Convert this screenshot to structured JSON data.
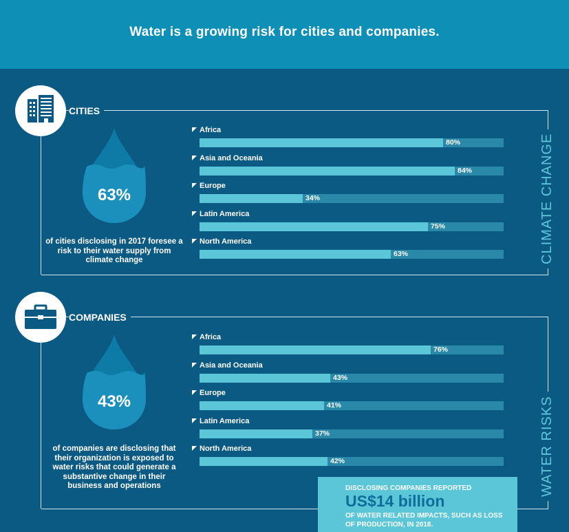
{
  "header": {
    "title": "Water is a growing risk for cities and companies."
  },
  "cities": {
    "label": "CITIES",
    "side_label": "CLIMATE CHANGE",
    "pct": "63%",
    "description": "of cities disclosing in 2017 foresee a risk to their water supply from climate change",
    "icon": "building-icon"
  },
  "companies": {
    "label": "COMPANIES",
    "side_label": "WATER RISKS",
    "pct": "43%",
    "description": "of companies are disclosing that their organization is exposed to water risks that could generate a substantive change in their business and operations",
    "icon": "briefcase-icon"
  },
  "callout": {
    "line1": "DISCLOSING COMPANIES REPORTED",
    "amount": "US$14 billion",
    "line2": "OF WATER RELATED IMPACTS, SUCH AS LOSS OF PRODUCTION, IN 2016."
  },
  "colors": {
    "background": "#0b5a83",
    "header": "#0d8fb6",
    "bar_fill": "#5bc6d8",
    "bar_track": "#2a88a8",
    "drop": "#1188b4",
    "accent_text": "#5ec7da"
  },
  "chart_data": [
    {
      "type": "bar",
      "title": "CITIES",
      "categories": [
        "Africa",
        "Asia and Oceania",
        "Europe",
        "Latin America",
        "North America"
      ],
      "values": [
        80,
        84,
        34,
        75,
        63
      ],
      "value_labels": [
        "80%",
        "84%",
        "34%",
        "75%",
        "63%"
      ],
      "ylim": [
        0,
        100
      ]
    },
    {
      "type": "bar",
      "title": "COMPANIES",
      "categories": [
        "Africa",
        "Asia and Oceania",
        "Europe",
        "Latin America",
        "North America"
      ],
      "values": [
        76,
        43,
        41,
        37,
        42
      ],
      "value_labels": [
        "76%",
        "43%",
        "41%",
        "37%",
        "42%"
      ],
      "ylim": [
        0,
        100
      ]
    }
  ]
}
